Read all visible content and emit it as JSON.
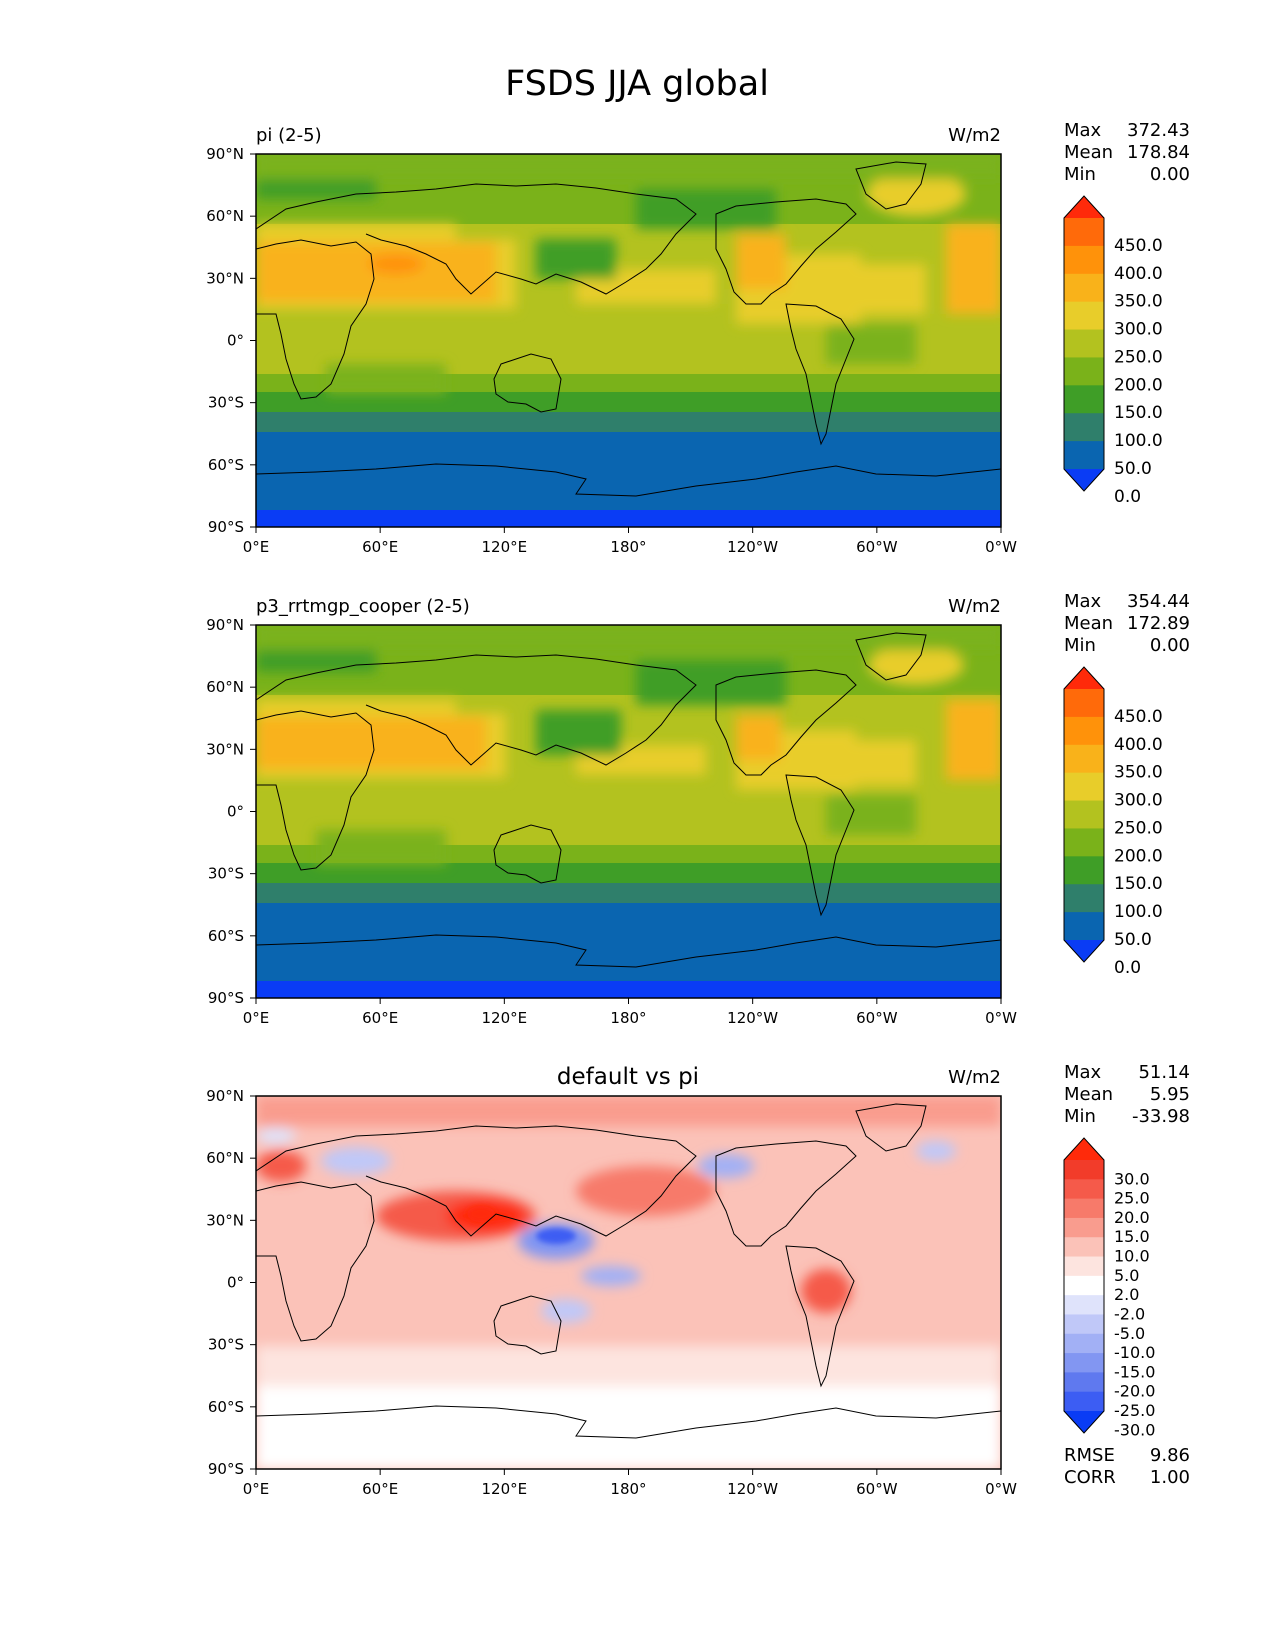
{
  "title": "FSDS JJA global",
  "x_ticks": [
    "0°E",
    "60°E",
    "120°E",
    "180°",
    "120°W",
    "60°W",
    "0°W"
  ],
  "y_ticks": [
    "90°N",
    "60°N",
    "30°N",
    "0°",
    "30°S",
    "60°S",
    "90°S"
  ],
  "stat_labels": {
    "max": "Max",
    "mean": "Mean",
    "min": "Min",
    "rmse": "RMSE",
    "corr": "CORR"
  },
  "panels": [
    {
      "id": "pi",
      "left_title": "pi (2-5)",
      "center_title": "",
      "units": "W/m2",
      "stats": {
        "max": "372.43",
        "mean": "178.84",
        "min": "0.00"
      },
      "colorbar": {
        "labels": [
          "450.0",
          "400.0",
          "350.0",
          "300.0",
          "250.0",
          "200.0",
          "150.0",
          "100.0",
          "50.0",
          "0.0"
        ],
        "colors_top_to_bottom": [
          "#ff2a0a",
          "#ff6a0a",
          "#ff920a",
          "#f9b21a",
          "#e8cd2a",
          "#b3c21f",
          "#7ab21a",
          "#3f9e27",
          "#2f7f6b",
          "#0a65b0",
          "#0a3cf5"
        ]
      }
    },
    {
      "id": "p3",
      "left_title": "p3_rrtmgp_cooper (2-5)",
      "center_title": "",
      "units": "W/m2",
      "stats": {
        "max": "354.44",
        "mean": "172.89",
        "min": "0.00"
      },
      "colorbar": {
        "labels": [
          "450.0",
          "400.0",
          "350.0",
          "300.0",
          "250.0",
          "200.0",
          "150.0",
          "100.0",
          "50.0",
          "0.0"
        ],
        "colors_top_to_bottom": [
          "#ff2a0a",
          "#ff6a0a",
          "#ff920a",
          "#f9b21a",
          "#e8cd2a",
          "#b3c21f",
          "#7ab21a",
          "#3f9e27",
          "#2f7f6b",
          "#0a65b0",
          "#0a3cf5"
        ]
      }
    },
    {
      "id": "diff",
      "left_title": "",
      "center_title": "default vs pi",
      "units": "W/m2",
      "stats": {
        "max": "51.14",
        "mean": "5.95",
        "min": "-33.98",
        "rmse": "9.86",
        "corr": "1.00"
      },
      "colorbar": {
        "labels": [
          "30.0",
          "25.0",
          "20.0",
          "15.0",
          "10.0",
          "5.0",
          "2.0",
          "-2.0",
          "-5.0",
          "-10.0",
          "-15.0",
          "-20.0",
          "-25.0",
          "-30.0"
        ],
        "colors_top_to_bottom": [
          "#ff2a0a",
          "#f23c2a",
          "#f55a4a",
          "#f77a6a",
          "#f99c8e",
          "#fbc2b8",
          "#fde4df",
          "#ffffff",
          "#dfe3fb",
          "#c0c8f8",
          "#a2b0f5",
          "#8296f2",
          "#5f79ef",
          "#3c5df3",
          "#0a3cf5"
        ]
      }
    }
  ]
}
